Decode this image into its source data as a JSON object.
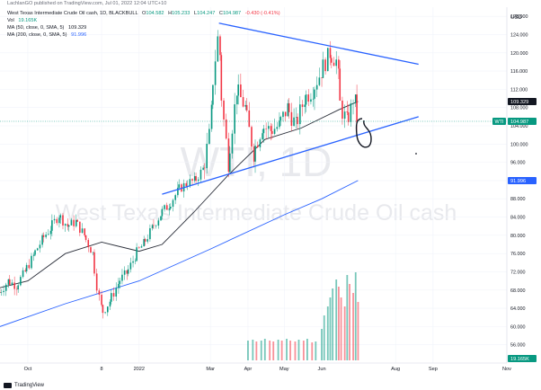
{
  "publish_line": "LachlanGO published on TradingView.com, Jul 01, 2022 12:04 UTC+10",
  "legend": {
    "symbol": "West Texas Intermediate Crude Oil cash, 1D, BLACKBULL",
    "ohlc": [
      {
        "label": "O",
        "value": "104.582"
      },
      {
        "label": "H",
        "value": "105.233"
      },
      {
        "label": "L",
        "value": "104.247"
      },
      {
        "label": "C",
        "value": "104.987"
      }
    ],
    "change": "-0.430 (-0.41%)",
    "volume_label": "Vol",
    "volume_value": "19.165K",
    "ma50_label": "MA (50, close, 0, SMA, 5)",
    "ma50_value": "109.329",
    "ma200_label": "MA (200, close, 0, SMA, 5)",
    "ma200_value": "91.996"
  },
  "watermark": {
    "symbol": "WTI, 1D",
    "name": "West Texas Intermediate Crude Oil cash"
  },
  "footer": {
    "brand": "TradingView"
  },
  "colors": {
    "up": "#089981",
    "down": "#f23645",
    "ma50": "#2a2e39",
    "ma200": "#2962ff",
    "trendline": "#2962ff",
    "last_price_label": "#089981"
  },
  "chart_data": {
    "type": "candlestick",
    "currency": "USD",
    "ylim": [
      52,
      130
    ],
    "y_ticks": [
      "56.000",
      "60.000",
      "64.000",
      "68.000",
      "72.000",
      "76.000",
      "80.000",
      "84.000",
      "88.000",
      "92.000",
      "96.000",
      "100.000",
      "104.000",
      "108.000",
      "112.000",
      "116.000",
      "120.000",
      "124.000",
      "128.000"
    ],
    "x_range": [
      "2021-09-08",
      "2022-11-01"
    ],
    "x_ticks": [
      {
        "date": "2021-10-01",
        "label": "Oct"
      },
      {
        "date": "2021-12-01",
        "label": "8"
      },
      {
        "date": "2022-01-01",
        "label": "2022"
      },
      {
        "date": "2022-03-01",
        "label": "Mar"
      },
      {
        "date": "2022-04-01",
        "label": "Apr"
      },
      {
        "date": "2022-05-01",
        "label": "May"
      },
      {
        "date": "2022-06-01",
        "label": "Jun"
      },
      {
        "date": "2022-08-01",
        "label": "Aug"
      },
      {
        "date": "2022-09-01",
        "label": "Sep"
      },
      {
        "date": "2022-11-01",
        "label": "Nov"
      }
    ],
    "close_path": [
      [
        "2021-09-08",
        67.5
      ],
      [
        "2021-09-15",
        70.0
      ],
      [
        "2021-09-22",
        69.0
      ],
      [
        "2021-09-29",
        72.0
      ],
      [
        "2021-10-06",
        75.5
      ],
      [
        "2021-10-13",
        79.0
      ],
      [
        "2021-10-20",
        81.5
      ],
      [
        "2021-10-27",
        84.5
      ],
      [
        "2021-11-03",
        82.0
      ],
      [
        "2021-11-10",
        83.0
      ],
      [
        "2021-11-17",
        80.0
      ],
      [
        "2021-11-24",
        76.0
      ],
      [
        "2021-11-28",
        68.0
      ],
      [
        "2021-12-02",
        63.0
      ],
      [
        "2021-12-09",
        66.0
      ],
      [
        "2021-12-16",
        70.0
      ],
      [
        "2021-12-23",
        72.0
      ],
      [
        "2021-12-30",
        76.0
      ],
      [
        "2022-01-06",
        78.5
      ],
      [
        "2022-01-13",
        82.0
      ],
      [
        "2022-01-20",
        85.0
      ],
      [
        "2022-01-27",
        87.0
      ],
      [
        "2022-02-03",
        90.0
      ],
      [
        "2022-02-10",
        91.5
      ],
      [
        "2022-02-17",
        92.0
      ],
      [
        "2022-02-24",
        95.0
      ],
      [
        "2022-03-01",
        103.0
      ],
      [
        "2022-03-04",
        115.0
      ],
      [
        "2022-03-08",
        125.0
      ],
      [
        "2022-03-11",
        109.0
      ],
      [
        "2022-03-16",
        96.0
      ],
      [
        "2022-03-23",
        112.0
      ],
      [
        "2022-03-30",
        108.0
      ],
      [
        "2022-04-06",
        98.0
      ],
      [
        "2022-04-13",
        104.0
      ],
      [
        "2022-04-20",
        103.0
      ],
      [
        "2022-04-27",
        104.0
      ],
      [
        "2022-05-04",
        108.0
      ],
      [
        "2022-05-11",
        104.0
      ],
      [
        "2022-05-18",
        110.0
      ],
      [
        "2022-05-25",
        112.0
      ],
      [
        "2022-06-01",
        116.0
      ],
      [
        "2022-06-08",
        120.0
      ],
      [
        "2022-06-14",
        118.0
      ],
      [
        "2022-06-17",
        108.0
      ],
      [
        "2022-06-22",
        105.0
      ],
      [
        "2022-06-25",
        107.0
      ],
      [
        "2022-06-28",
        111.0
      ],
      [
        "2022-07-01",
        104.987
      ]
    ],
    "ma50_value": 109.329,
    "ma50_path": [
      [
        "2021-09-08",
        68.5
      ],
      [
        "2021-10-01",
        70.0
      ],
      [
        "2021-11-01",
        76.0
      ],
      [
        "2021-12-01",
        78.5
      ],
      [
        "2022-01-01",
        76.5
      ],
      [
        "2022-01-20",
        78.0
      ],
      [
        "2022-02-15",
        85.0
      ],
      [
        "2022-03-15",
        93.0
      ],
      [
        "2022-04-15",
        101.0
      ],
      [
        "2022-05-15",
        103.5
      ],
      [
        "2022-06-15",
        107.5
      ],
      [
        "2022-07-01",
        109.329
      ]
    ],
    "ma200_value": 91.996,
    "ma200_path": [
      [
        "2021-09-08",
        60.0
      ],
      [
        "2021-11-01",
        65.0
      ],
      [
        "2022-01-01",
        70.0
      ],
      [
        "2022-03-01",
        77.0
      ],
      [
        "2022-05-01",
        84.5
      ],
      [
        "2022-06-01",
        88.0
      ],
      [
        "2022-07-01",
        91.996
      ]
    ],
    "last_price": {
      "label": "WTI",
      "value": 104.987
    },
    "ma50_price_label": "109.329",
    "ma200_price_label": "91.996",
    "trendlines": [
      {
        "name": "upper",
        "from": [
          "2022-03-08",
          126.5
        ],
        "to": [
          "2022-08-20",
          117.5
        ]
      },
      {
        "name": "lower",
        "from": [
          "2022-01-20",
          89.0
        ],
        "to": [
          "2022-08-20",
          106.0
        ]
      }
    ],
    "volume": {
      "last_value_label": "19.165K",
      "bars": [
        [
          "2022-04-01",
          0.22
        ],
        [
          "2022-04-05",
          0.23
        ],
        [
          "2022-04-08",
          0.21
        ],
        [
          "2022-04-12",
          0.22
        ],
        [
          "2022-04-15",
          0.24
        ],
        [
          "2022-04-19",
          0.22
        ],
        [
          "2022-04-22",
          0.21
        ],
        [
          "2022-04-26",
          0.23
        ],
        [
          "2022-04-29",
          0.22
        ],
        [
          "2022-05-03",
          0.24
        ],
        [
          "2022-05-06",
          0.22
        ],
        [
          "2022-05-10",
          0.21
        ],
        [
          "2022-05-13",
          0.23
        ],
        [
          "2022-05-17",
          0.22
        ],
        [
          "2022-05-20",
          0.24
        ],
        [
          "2022-05-24",
          0.2
        ],
        [
          "2022-05-27",
          0.21
        ],
        [
          "2022-06-01",
          0.35
        ],
        [
          "2022-06-03",
          0.5
        ],
        [
          "2022-06-06",
          0.6
        ],
        [
          "2022-06-08",
          0.7
        ],
        [
          "2022-06-10",
          0.8
        ],
        [
          "2022-06-13",
          0.9
        ],
        [
          "2022-06-15",
          0.82
        ],
        [
          "2022-06-17",
          0.7
        ],
        [
          "2022-06-20",
          0.6
        ],
        [
          "2022-06-22",
          0.95
        ],
        [
          "2022-06-24",
          0.85
        ],
        [
          "2022-06-27",
          0.75
        ],
        [
          "2022-06-29",
          0.98
        ],
        [
          "2022-07-01",
          0.65
        ]
      ]
    }
  }
}
